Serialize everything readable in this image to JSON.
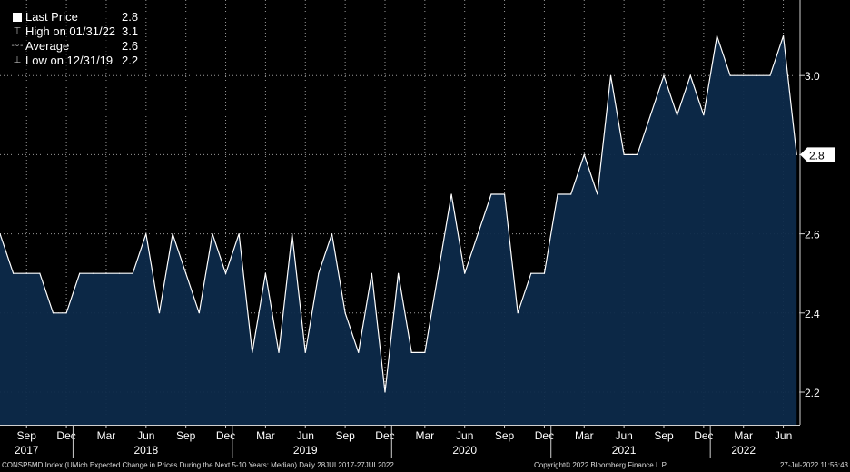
{
  "chart_data": {
    "type": "area",
    "title": "",
    "legend": [
      {
        "label": "Last Price",
        "value": "2.8",
        "icon": "square-icon"
      },
      {
        "label": "High on 01/31/22",
        "value": "3.1",
        "icon": "high-marker-icon"
      },
      {
        "label": "Average",
        "value": "2.6",
        "icon": "average-marker-icon"
      },
      {
        "label": "Low on 12/31/19",
        "value": "2.2",
        "icon": "low-marker-icon"
      }
    ],
    "last_price_tag": "2.8",
    "ylim": [
      2.1,
      3.2
    ],
    "y_ticks": [
      2.2,
      2.4,
      2.6,
      2.8,
      3.0
    ],
    "y_tick_labels": [
      "2.2",
      "2.4",
      "2.6",
      "2.8",
      "3.0"
    ],
    "x_month_labels": [
      {
        "date": "2017-09",
        "label": "Sep"
      },
      {
        "date": "2017-12",
        "label": "Dec"
      },
      {
        "date": "2018-03",
        "label": "Mar"
      },
      {
        "date": "2018-06",
        "label": "Jun"
      },
      {
        "date": "2018-09",
        "label": "Sep"
      },
      {
        "date": "2018-12",
        "label": "Dec"
      },
      {
        "date": "2019-03",
        "label": "Mar"
      },
      {
        "date": "2019-06",
        "label": "Jun"
      },
      {
        "date": "2019-09",
        "label": "Sep"
      },
      {
        "date": "2019-12",
        "label": "Dec"
      },
      {
        "date": "2020-03",
        "label": "Mar"
      },
      {
        "date": "2020-06",
        "label": "Jun"
      },
      {
        "date": "2020-09",
        "label": "Sep"
      },
      {
        "date": "2020-12",
        "label": "Dec"
      },
      {
        "date": "2021-03",
        "label": "Mar"
      },
      {
        "date": "2021-06",
        "label": "Jun"
      },
      {
        "date": "2021-09",
        "label": "Sep"
      },
      {
        "date": "2021-12",
        "label": "Dec"
      },
      {
        "date": "2022-03",
        "label": "Mar"
      },
      {
        "date": "2022-06",
        "label": "Jun"
      }
    ],
    "x_year_labels": [
      {
        "date": "2017-09",
        "label": "2017"
      },
      {
        "date": "2018-06",
        "label": "2018"
      },
      {
        "date": "2019-06",
        "label": "2019"
      },
      {
        "date": "2020-06",
        "label": "2020"
      },
      {
        "date": "2021-06",
        "label": "2021"
      },
      {
        "date": "2022-03",
        "label": "2022"
      }
    ],
    "x_year_separators": [
      "2018-01",
      "2019-01",
      "2020-01",
      "2021-01",
      "2022-01"
    ],
    "series": [
      {
        "x": [
          "2017-07",
          "2017-08",
          "2017-09",
          "2017-10",
          "2017-11",
          "2017-12",
          "2018-01",
          "2018-02",
          "2018-03",
          "2018-04",
          "2018-05",
          "2018-06",
          "2018-07",
          "2018-08",
          "2018-09",
          "2018-10",
          "2018-11",
          "2018-12",
          "2019-01",
          "2019-02",
          "2019-03",
          "2019-04",
          "2019-05",
          "2019-06",
          "2019-07",
          "2019-08",
          "2019-09",
          "2019-10",
          "2019-11",
          "2019-12",
          "2020-01",
          "2020-02",
          "2020-03",
          "2020-04",
          "2020-05",
          "2020-06",
          "2020-07",
          "2020-08",
          "2020-09",
          "2020-10",
          "2020-11",
          "2020-12",
          "2021-01",
          "2021-02",
          "2021-03",
          "2021-04",
          "2021-05",
          "2021-06",
          "2021-07",
          "2021-08",
          "2021-09",
          "2021-10",
          "2021-11",
          "2021-12",
          "2022-01",
          "2022-02",
          "2022-03",
          "2022-04",
          "2022-05",
          "2022-06",
          "2022-07"
        ],
        "values": [
          2.6,
          2.5,
          2.5,
          2.5,
          2.4,
          2.4,
          2.5,
          2.5,
          2.5,
          2.5,
          2.5,
          2.6,
          2.4,
          2.6,
          2.5,
          2.4,
          2.6,
          2.5,
          2.6,
          2.3,
          2.5,
          2.3,
          2.6,
          2.3,
          2.5,
          2.6,
          2.4,
          2.3,
          2.5,
          2.2,
          2.5,
          2.3,
          2.3,
          2.5,
          2.7,
          2.5,
          2.6,
          2.7,
          2.7,
          2.4,
          2.5,
          2.5,
          2.7,
          2.7,
          2.8,
          2.7,
          3.0,
          2.8,
          2.8,
          2.9,
          3.0,
          2.9,
          3.0,
          2.9,
          3.1,
          3.0,
          3.0,
          3.0,
          3.0,
          3.1,
          2.8
        ]
      }
    ],
    "grid": true,
    "colors": {
      "line": "#ffffff",
      "fill": "#0d2a4a",
      "grid": "#9a9a9a",
      "background": "#000000"
    }
  },
  "footer": {
    "ticker": "CONSP5MD Index (UMich Expected Change in Prices During the Next 5-10 Years: Median)  Daily 28JUL2017-27JUL2022",
    "copyright": "Copyright© 2022 Bloomberg Finance L.P.",
    "timestamp": "27-Jul-2022 11:56:43"
  }
}
